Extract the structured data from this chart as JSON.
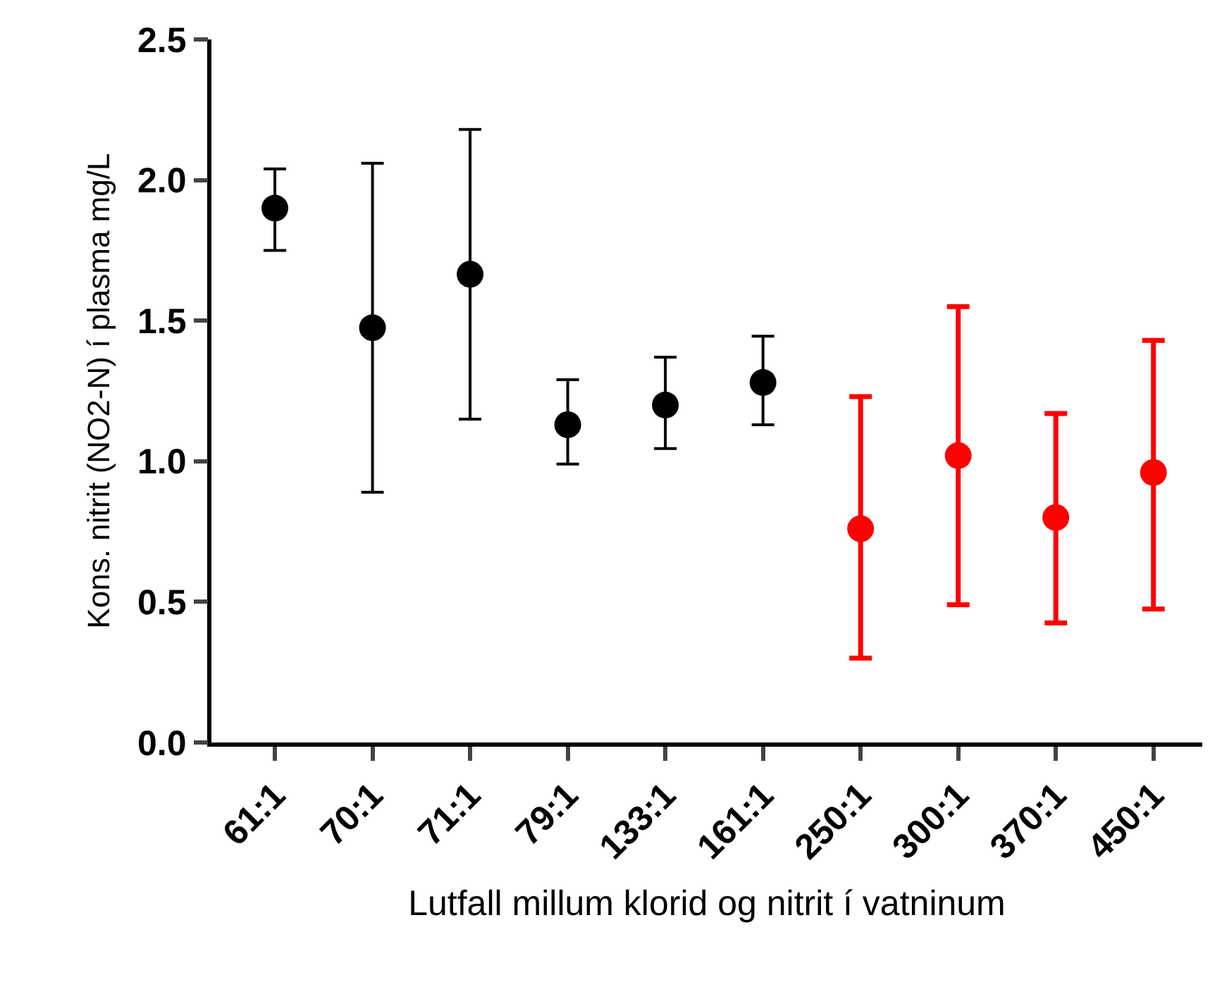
{
  "chart_data": {
    "type": "scatter",
    "xlabel": "Lutfall millum klorid og nitrit í vatninum",
    "ylabel": "Kons. nitrit (NO2-N) í plasma mg/L",
    "categories": [
      "61:1",
      "70:1",
      "71:1",
      "79:1",
      "133:1",
      "161:1",
      "250:1",
      "300:1",
      "370:1",
      "450:1"
    ],
    "values": [
      1.9,
      1.475,
      1.665,
      1.13,
      1.2,
      1.28,
      0.76,
      1.02,
      0.8,
      0.96
    ],
    "colors": [
      "#000000",
      "#000000",
      "#000000",
      "#000000",
      "#000000",
      "#000000",
      "#ff0000",
      "#ff0000",
      "#ff0000",
      "#ff0000"
    ],
    "errors": [
      [
        1.75,
        2.04
      ],
      [
        0.89,
        2.06
      ],
      [
        1.15,
        2.18
      ],
      [
        0.99,
        1.29
      ],
      [
        1.045,
        1.37
      ],
      [
        1.13,
        1.445
      ],
      [
        0.3,
        1.23
      ],
      [
        0.49,
        1.55
      ],
      [
        0.425,
        1.17
      ],
      [
        0.475,
        1.43
      ]
    ],
    "ylim": [
      0,
      2.5
    ],
    "yticks": [
      {
        "value": 0,
        "label": "0.0"
      },
      {
        "value": 0.5,
        "label": "0.5"
      },
      {
        "value": 1,
        "label": "1.0"
      },
      {
        "value": 1.5,
        "label": "1.5"
      },
      {
        "value": 2,
        "label": "2.0"
      },
      {
        "value": 2.5,
        "label": "2.5"
      }
    ],
    "grid": false,
    "marker": "circle"
  }
}
